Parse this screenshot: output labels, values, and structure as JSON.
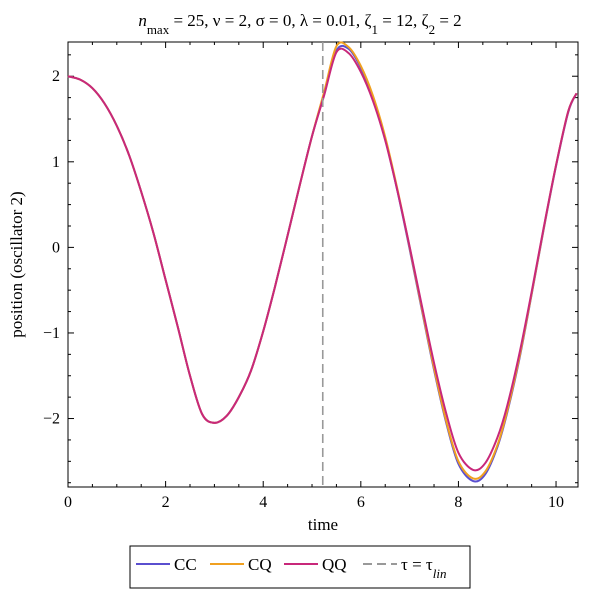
{
  "chart_data": {
    "type": "line",
    "title": {
      "parts": [
        {
          "text": "n",
          "style": "italic"
        },
        {
          "text": "max",
          "style": "sub"
        },
        {
          "text": " = 25, ν = 2, σ = 0, λ = 0.01, ζ",
          "style": "normal"
        },
        {
          "text": "1",
          "style": "sub"
        },
        {
          "text": " = 12, ζ",
          "style": "normal"
        },
        {
          "text": "2",
          "style": "sub"
        },
        {
          "text": " = 2",
          "style": "normal"
        }
      ]
    },
    "xlabel": "time",
    "ylabel": "position (oscillator 2)",
    "xlim": [
      0,
      10.45
    ],
    "ylim": [
      -2.8,
      2.4
    ],
    "x_ticks": [
      {
        "value": 0,
        "label": "0"
      },
      {
        "value": 2,
        "label": "2"
      },
      {
        "value": 4,
        "label": "4"
      },
      {
        "value": 6,
        "label": "6"
      },
      {
        "value": 8,
        "label": "8"
      },
      {
        "value": 10,
        "label": "10"
      }
    ],
    "y_ticks": [
      {
        "value": -2,
        "label": "−2"
      },
      {
        "value": -1,
        "label": "−1"
      },
      {
        "value": 0,
        "label": "0"
      },
      {
        "value": 1,
        "label": "1"
      },
      {
        "value": 2,
        "label": "2"
      }
    ],
    "grid": false,
    "legend_position": "bottom",
    "series": [
      {
        "name": "CC",
        "color": "#5a4fcf",
        "points": [
          [
            0,
            2.0
          ],
          [
            0.25,
            1.96
          ],
          [
            0.5,
            1.86
          ],
          [
            0.75,
            1.68
          ],
          [
            1.0,
            1.42
          ],
          [
            1.25,
            1.08
          ],
          [
            1.5,
            0.65
          ],
          [
            1.75,
            0.17
          ],
          [
            2.0,
            -0.38
          ],
          [
            2.25,
            -0.93
          ],
          [
            2.5,
            -1.5
          ],
          [
            2.75,
            -1.95
          ],
          [
            3.0,
            -2.05
          ],
          [
            3.25,
            -1.97
          ],
          [
            3.5,
            -1.75
          ],
          [
            3.75,
            -1.44
          ],
          [
            4.0,
            -0.98
          ],
          [
            4.25,
            -0.44
          ],
          [
            4.5,
            0.14
          ],
          [
            4.75,
            0.73
          ],
          [
            5.0,
            1.3
          ],
          [
            5.25,
            1.8
          ],
          [
            5.5,
            2.3
          ],
          [
            5.75,
            2.32
          ],
          [
            6.0,
            2.1
          ],
          [
            6.25,
            1.75
          ],
          [
            6.5,
            1.27
          ],
          [
            6.75,
            0.66
          ],
          [
            7.0,
            -0.02
          ],
          [
            7.25,
            -0.73
          ],
          [
            7.5,
            -1.43
          ],
          [
            7.75,
            -2.05
          ],
          [
            8.0,
            -2.53
          ],
          [
            8.3,
            -2.73
          ],
          [
            8.55,
            -2.65
          ],
          [
            8.8,
            -2.33
          ],
          [
            9.0,
            -1.93
          ],
          [
            9.25,
            -1.3
          ],
          [
            9.5,
            -0.55
          ],
          [
            9.75,
            0.22
          ],
          [
            10.0,
            0.95
          ],
          [
            10.25,
            1.58
          ],
          [
            10.42,
            1.8
          ]
        ]
      },
      {
        "name": "CQ",
        "color": "#f0a020",
        "points": [
          [
            0,
            2.0
          ],
          [
            0.25,
            1.96
          ],
          [
            0.5,
            1.86
          ],
          [
            0.75,
            1.68
          ],
          [
            1.0,
            1.42
          ],
          [
            1.25,
            1.08
          ],
          [
            1.5,
            0.65
          ],
          [
            1.75,
            0.17
          ],
          [
            2.0,
            -0.38
          ],
          [
            2.25,
            -0.93
          ],
          [
            2.5,
            -1.5
          ],
          [
            2.75,
            -1.95
          ],
          [
            3.0,
            -2.05
          ],
          [
            3.25,
            -1.97
          ],
          [
            3.5,
            -1.75
          ],
          [
            3.75,
            -1.44
          ],
          [
            4.0,
            -0.98
          ],
          [
            4.25,
            -0.44
          ],
          [
            4.5,
            0.14
          ],
          [
            4.75,
            0.73
          ],
          [
            5.0,
            1.3
          ],
          [
            5.25,
            1.82
          ],
          [
            5.5,
            2.35
          ],
          [
            5.75,
            2.34
          ],
          [
            6.0,
            2.12
          ],
          [
            6.25,
            1.77
          ],
          [
            6.5,
            1.29
          ],
          [
            6.75,
            0.68
          ],
          [
            7.0,
            0.0
          ],
          [
            7.25,
            -0.71
          ],
          [
            7.5,
            -1.41
          ],
          [
            7.75,
            -2.03
          ],
          [
            8.0,
            -2.5
          ],
          [
            8.3,
            -2.7
          ],
          [
            8.55,
            -2.62
          ],
          [
            8.8,
            -2.31
          ],
          [
            9.0,
            -1.91
          ],
          [
            9.25,
            -1.28
          ],
          [
            9.5,
            -0.54
          ],
          [
            9.75,
            0.23
          ],
          [
            10.0,
            0.96
          ],
          [
            10.25,
            1.59
          ],
          [
            10.42,
            1.8
          ]
        ]
      },
      {
        "name": "QQ",
        "color": "#c8287a",
        "points": [
          [
            0,
            2.0
          ],
          [
            0.25,
            1.96
          ],
          [
            0.5,
            1.86
          ],
          [
            0.75,
            1.68
          ],
          [
            1.0,
            1.42
          ],
          [
            1.25,
            1.08
          ],
          [
            1.5,
            0.65
          ],
          [
            1.75,
            0.17
          ],
          [
            2.0,
            -0.38
          ],
          [
            2.25,
            -0.93
          ],
          [
            2.5,
            -1.5
          ],
          [
            2.75,
            -1.95
          ],
          [
            3.0,
            -2.05
          ],
          [
            3.25,
            -1.97
          ],
          [
            3.5,
            -1.75
          ],
          [
            3.75,
            -1.44
          ],
          [
            4.0,
            -0.98
          ],
          [
            4.25,
            -0.44
          ],
          [
            4.5,
            0.14
          ],
          [
            4.75,
            0.73
          ],
          [
            5.0,
            1.3
          ],
          [
            5.25,
            1.78
          ],
          [
            5.5,
            2.28
          ],
          [
            5.75,
            2.27
          ],
          [
            6.0,
            2.05
          ],
          [
            6.25,
            1.71
          ],
          [
            6.5,
            1.25
          ],
          [
            6.75,
            0.66
          ],
          [
            7.0,
            0.01
          ],
          [
            7.25,
            -0.68
          ],
          [
            7.5,
            -1.35
          ],
          [
            7.75,
            -1.94
          ],
          [
            8.0,
            -2.4
          ],
          [
            8.3,
            -2.6
          ],
          [
            8.55,
            -2.52
          ],
          [
            8.8,
            -2.22
          ],
          [
            9.0,
            -1.85
          ],
          [
            9.25,
            -1.24
          ],
          [
            9.5,
            -0.52
          ],
          [
            9.75,
            0.24
          ],
          [
            10.0,
            0.96
          ],
          [
            10.25,
            1.59
          ],
          [
            10.42,
            1.8
          ]
        ]
      }
    ],
    "vline": {
      "x": 5.22,
      "color": "#999999",
      "label_parts": [
        {
          "text": "τ = τ",
          "style": "normal"
        },
        {
          "text": "lin",
          "style": "sub-italic"
        }
      ]
    }
  }
}
